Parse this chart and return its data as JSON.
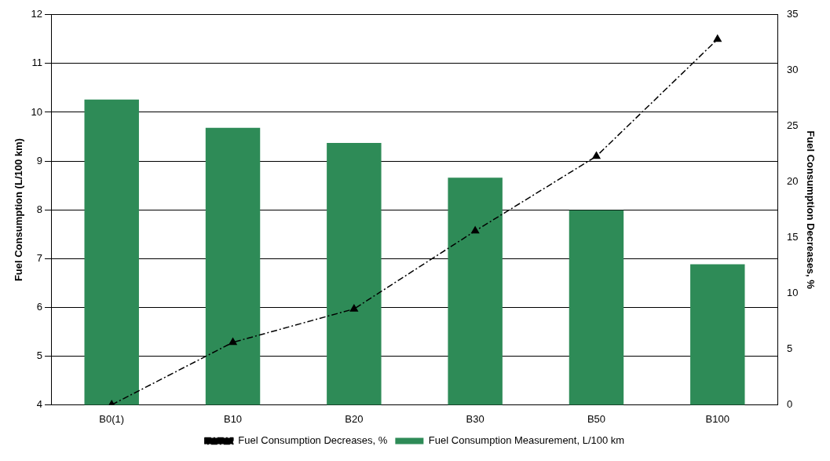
{
  "chart_data": {
    "type": "bar",
    "categories": [
      "B0(1)",
      "B10",
      "B20",
      "B30",
      "B50",
      "B100"
    ],
    "ylabel": "Fuel Consumption (L/100 km)",
    "y2label": "Fuel Consumption Decreases, %",
    "ylim": [
      4,
      12
    ],
    "yticks": [
      4,
      5,
      6,
      7,
      8,
      9,
      10,
      11,
      12
    ],
    "y2lim": [
      0,
      35
    ],
    "y2ticks": [
      0,
      5,
      10,
      15,
      20,
      25,
      30,
      35
    ],
    "series": [
      {
        "name": "Fuel Consumption Measurement, L/100 km",
        "color": "#2e8b57",
        "values": [
          10.26,
          9.68,
          9.37,
          8.66,
          7.99,
          6.88
        ]
      },
      {
        "name": "Fuel Consumption Decreases, %",
        "type": "line",
        "axis": "y2",
        "color": "#000000",
        "values": [
          0,
          5.6,
          8.6,
          15.6,
          22.3,
          32.8
        ]
      }
    ],
    "grid": "y",
    "legend": "bottom",
    "marker": "triangle",
    "line_style": "dashed"
  }
}
